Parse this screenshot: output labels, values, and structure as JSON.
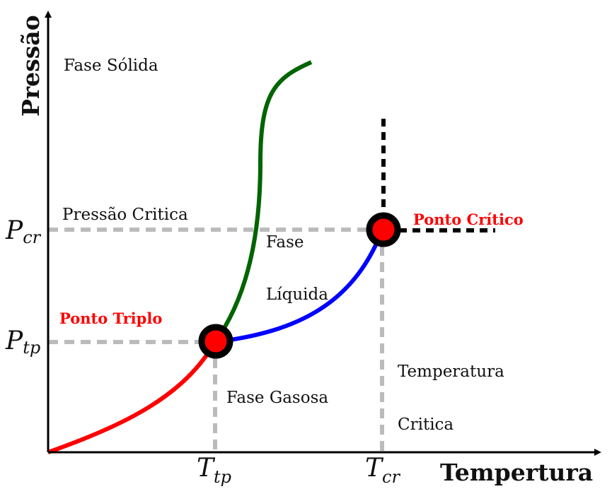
{
  "axes": {
    "y_title": "Pressão",
    "x_title": "Tempertura",
    "y_ticks": [
      {
        "main": "P",
        "sub": "cr"
      },
      {
        "main": "P",
        "sub": "tp"
      }
    ],
    "x_ticks": [
      {
        "main": "T",
        "sub": "tp"
      },
      {
        "main": "T",
        "sub": "cr"
      }
    ]
  },
  "regions": {
    "solid": "Fase Sólida",
    "critical_pressure": "Pressão Critica",
    "liquid_line1": "Fase",
    "liquid_line2": "Líquida",
    "gas": "Fase Gasosa",
    "critical_temp_line1": "Temperatura",
    "critical_temp_line2": "Critica"
  },
  "points": {
    "triple": "Ponto Triplo",
    "critical": "Ponto Crítico"
  },
  "colors": {
    "sublimation_curve": "#ff0000",
    "fusion_curve": "#006400",
    "vaporization_curve": "#0000ff",
    "point_fill": "#ff0000",
    "point_ring": "#000000",
    "guide_lines": "#bbbbbb",
    "critical_dashes": "#000000",
    "point_label": "#ff0000"
  }
}
